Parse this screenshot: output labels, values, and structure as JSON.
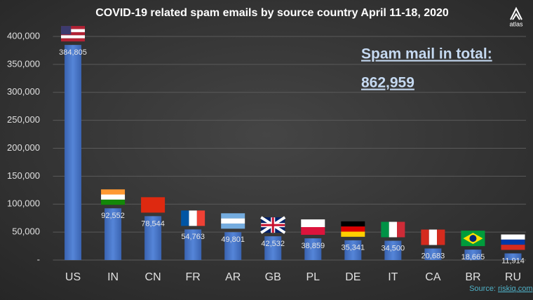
{
  "chart_data": {
    "type": "bar",
    "title": "COVID-19 related spam emails by source country April 11-18, 2020",
    "categories": [
      "US",
      "IN",
      "CN",
      "FR",
      "AR",
      "GB",
      "PL",
      "DE",
      "IT",
      "CA",
      "BR",
      "RU"
    ],
    "values": [
      384805,
      92552,
      78544,
      54763,
      49801,
      42532,
      38859,
      35341,
      34500,
      20683,
      18665,
      11914
    ],
    "value_labels": [
      "384,805",
      "92,552",
      "78,544",
      "54,763",
      "49,801",
      "42,532",
      "38,859",
      "35,341",
      "34,500",
      "20,683",
      "18,665",
      "11,914"
    ],
    "color": "#4472c4",
    "ylim": [
      0,
      400000
    ],
    "yticks": [
      {
        "value": 0,
        "label": "-"
      },
      {
        "value": 50000,
        "label": "50,000"
      },
      {
        "value": 100000,
        "label": "100,000"
      },
      {
        "value": 150000,
        "label": "150,000"
      },
      {
        "value": 200000,
        "label": "200,000"
      },
      {
        "value": 250000,
        "label": "250,000"
      },
      {
        "value": 300000,
        "label": "300,000"
      },
      {
        "value": 350000,
        "label": "350,000"
      },
      {
        "value": 400000,
        "label": "400,000"
      }
    ],
    "grid": true,
    "annotations": [
      "Spam mail in total:",
      "862,959"
    ],
    "logo_text": "atlas",
    "source_label": "Source:",
    "source_link": "riskiq.com"
  }
}
